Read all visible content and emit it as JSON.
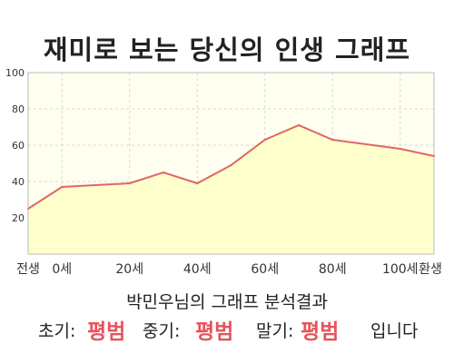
{
  "title": "재미로 보는 당신의 인생 그래프",
  "subtitle": "박민우님의 그래프 분석결과",
  "result": {
    "early_label": "초기:",
    "early_value": "평범",
    "mid_label": "중기:",
    "mid_value": "평범",
    "late_label": "말기:",
    "late_value": "평범",
    "ending": "입니다"
  },
  "colors": {
    "line": "#e06666",
    "fill": "#ffffcc",
    "plot_bg": "#fffff0",
    "grid": "#d8d8d8",
    "highlight": "#e8525a"
  },
  "chart_data": {
    "type": "area",
    "x": [
      -10,
      0,
      20,
      30,
      40,
      50,
      60,
      70,
      80,
      100,
      110
    ],
    "y": [
      25,
      37,
      39,
      45,
      39,
      49,
      63,
      71,
      63,
      58,
      54
    ],
    "xlim": [
      -10,
      110
    ],
    "ylim": [
      0,
      100
    ],
    "yticks": [
      20,
      40,
      60,
      80,
      100
    ],
    "y_tick_labels": [
      "20",
      "40",
      "60",
      "80",
      "100"
    ],
    "xticks": [
      -10,
      0,
      20,
      40,
      60,
      80,
      100,
      110
    ],
    "x_tick_labels": [
      "전생",
      "0세",
      "20세",
      "40세",
      "60세",
      "80세",
      "100세",
      "환생"
    ],
    "grid": true,
    "legend": "none"
  }
}
